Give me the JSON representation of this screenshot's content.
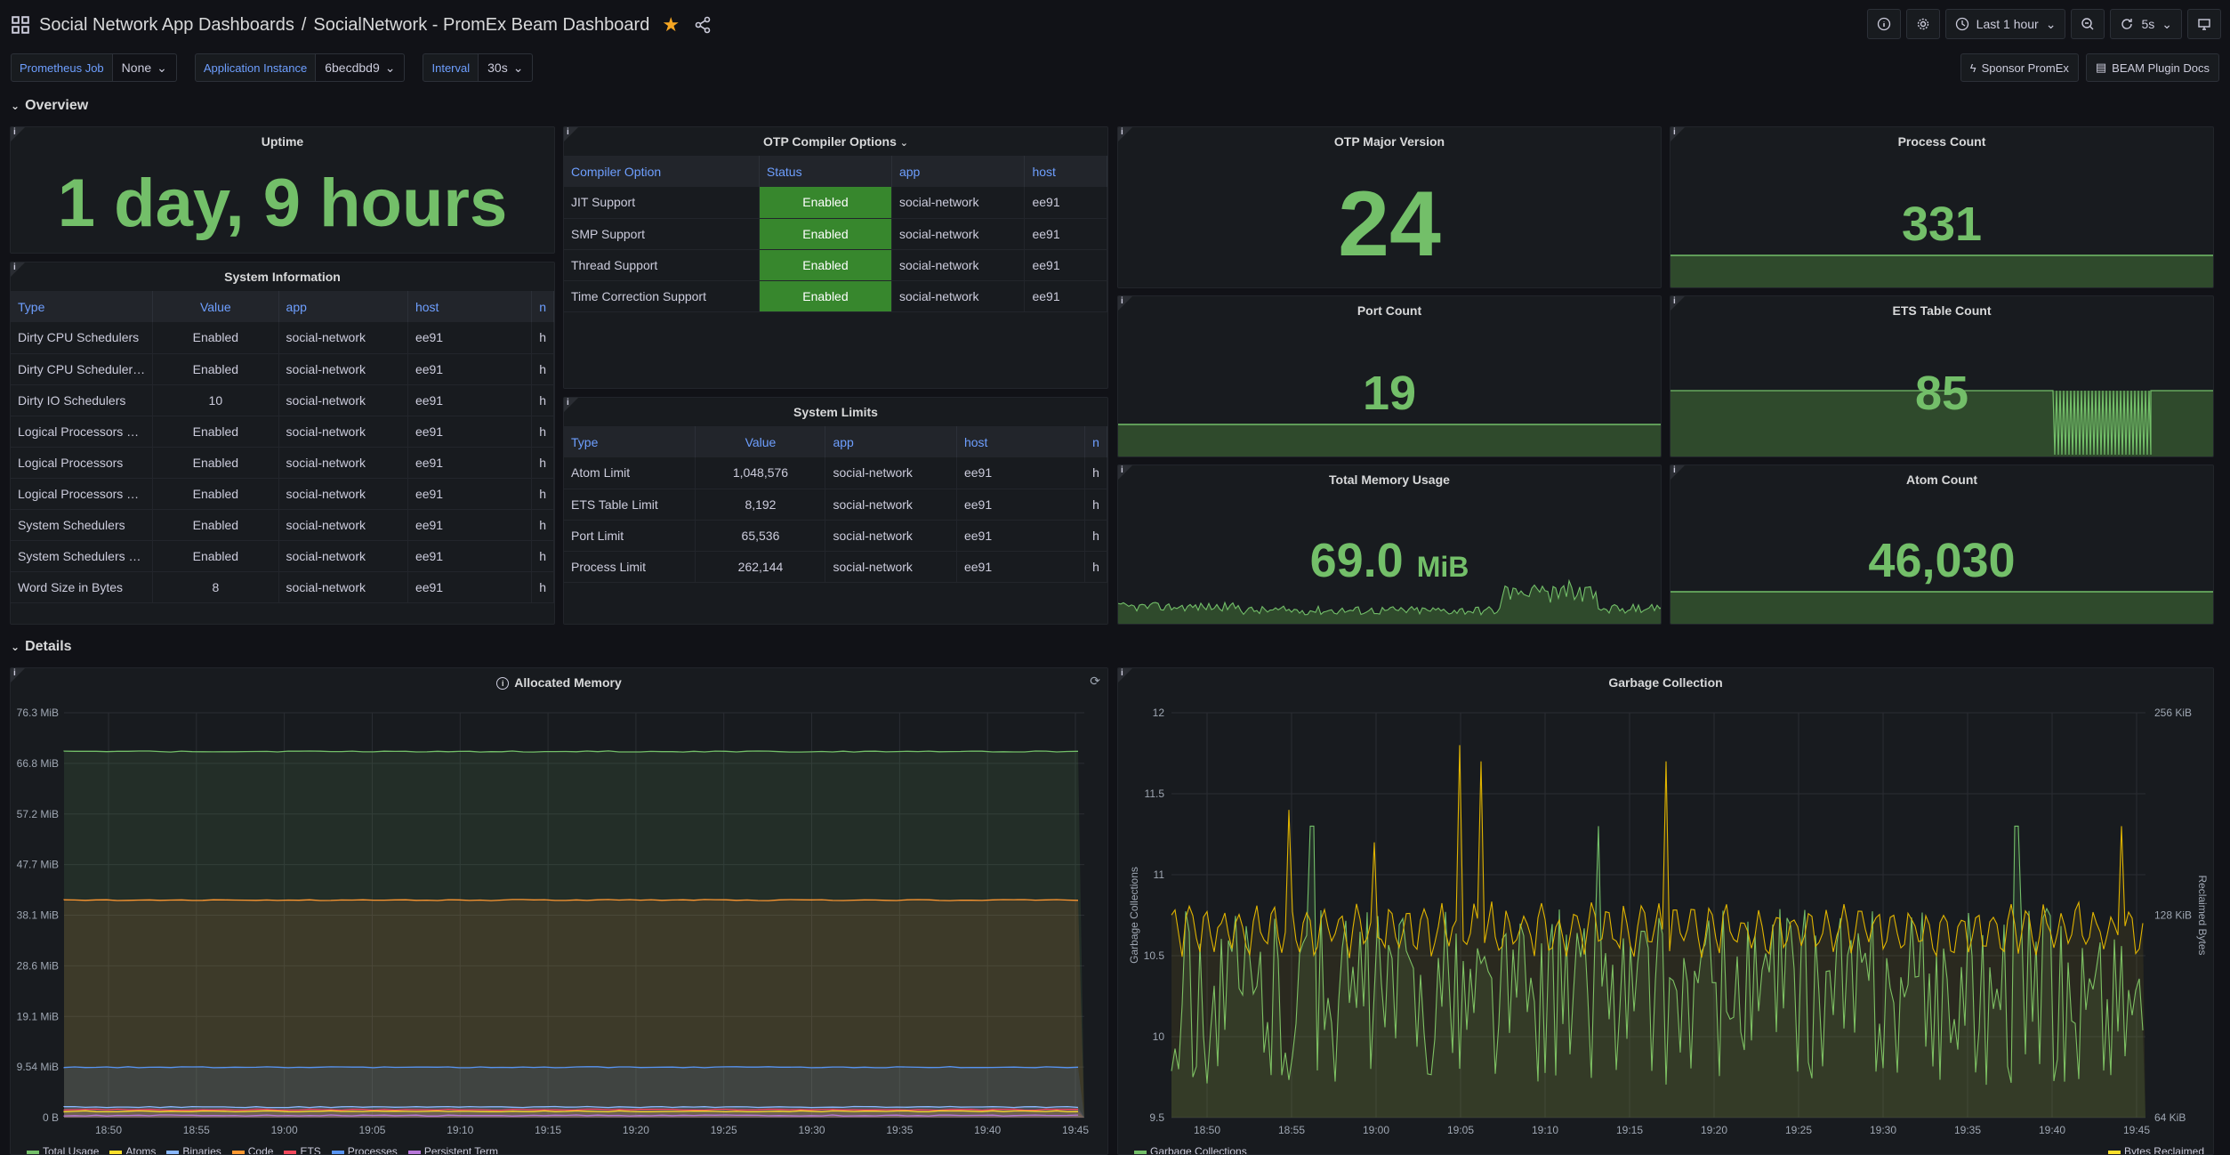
{
  "header": {
    "folder": "Social Network App Dashboards",
    "separator": "/",
    "title": "SocialNetwork - PromEx Beam Dashboard",
    "time_range": "Last 1 hour",
    "refresh_interval": "5s"
  },
  "variables": [
    {
      "label": "Prometheus Job",
      "value": "None"
    },
    {
      "label": "Application Instance",
      "value": "6becdbd9"
    },
    {
      "label": "Interval",
      "value": "30s"
    }
  ],
  "links": {
    "sponsor": "Sponsor PromEx",
    "docs": "BEAM Plugin Docs"
  },
  "rows": {
    "overview": "Overview",
    "details": "Details"
  },
  "uptime": {
    "title": "Uptime",
    "value": "1 day, 9 hours"
  },
  "system_info": {
    "title": "System Information",
    "columns": [
      "Type",
      "Value",
      "app",
      "host",
      "n"
    ],
    "rows": [
      [
        "Dirty CPU Schedulers",
        "Enabled",
        "social-network",
        "ee91",
        "h"
      ],
      [
        "Dirty CPU Scheduler…",
        "Enabled",
        "social-network",
        "ee91",
        "h"
      ],
      [
        "Dirty IO Schedulers",
        "10",
        "social-network",
        "ee91",
        "h"
      ],
      [
        "Logical Processors …",
        "Enabled",
        "social-network",
        "ee91",
        "h"
      ],
      [
        "Logical Processors",
        "Enabled",
        "social-network",
        "ee91",
        "h"
      ],
      [
        "Logical Processors …",
        "Enabled",
        "social-network",
        "ee91",
        "h"
      ],
      [
        "System Schedulers",
        "Enabled",
        "social-network",
        "ee91",
        "h"
      ],
      [
        "System Schedulers …",
        "Enabled",
        "social-network",
        "ee91",
        "h"
      ],
      [
        "Word Size in Bytes",
        "8",
        "social-network",
        "ee91",
        "h"
      ]
    ]
  },
  "otp_compiler": {
    "title": "OTP Compiler Options",
    "columns": [
      "Compiler Option",
      "Status",
      "app",
      "host"
    ],
    "rows": [
      [
        "JIT Support",
        "Enabled",
        "social-network",
        "ee91"
      ],
      [
        "SMP Support",
        "Enabled",
        "social-network",
        "ee91"
      ],
      [
        "Thread Support",
        "Enabled",
        "social-network",
        "ee91"
      ],
      [
        "Time Correction Support",
        "Enabled",
        "social-network",
        "ee91"
      ]
    ]
  },
  "system_limits": {
    "title": "System Limits",
    "columns": [
      "Type",
      "Value",
      "app",
      "host",
      "n"
    ],
    "rows": [
      [
        "Atom Limit",
        "1,048,576",
        "social-network",
        "ee91",
        "h"
      ],
      [
        "ETS Table Limit",
        "8,192",
        "social-network",
        "ee91",
        "h"
      ],
      [
        "Port Limit",
        "65,536",
        "social-network",
        "ee91",
        "h"
      ],
      [
        "Process Limit",
        "262,144",
        "social-network",
        "ee91",
        "h"
      ]
    ]
  },
  "stats": {
    "otp_major": {
      "title": "OTP Major Version",
      "value": "24"
    },
    "process_count": {
      "title": "Process Count",
      "value": "331"
    },
    "port_count": {
      "title": "Port Count",
      "value": "19"
    },
    "ets_count": {
      "title": "ETS Table Count",
      "value": "85"
    },
    "memory": {
      "title": "Total Memory Usage",
      "value": "69.0",
      "unit": "MiB"
    },
    "atom_count": {
      "title": "Atom Count",
      "value": "46,030"
    }
  },
  "colors": {
    "green": "#73bf69",
    "yellow": "#fade2a",
    "orange": "#ff9830",
    "blue": "#5794f2",
    "background": "#111217",
    "panel": "#181b1f"
  },
  "chart_data": [
    {
      "type": "area",
      "title": "Allocated Memory",
      "x": [
        "18:50",
        "18:55",
        "19:00",
        "19:05",
        "19:10",
        "19:15",
        "19:20",
        "19:25",
        "19:30",
        "19:35",
        "19:40",
        "19:45"
      ],
      "yticks": [
        "76.3 MiB",
        "66.8 MiB",
        "57.2 MiB",
        "47.7 MiB",
        "38.1 MiB",
        "28.6 MiB",
        "19.1 MiB",
        "9.54 MiB",
        "0 B"
      ],
      "ylim": [
        0,
        76.3
      ],
      "series": [
        {
          "name": "Total Usage",
          "color": "#73bf69",
          "value": 69.0
        },
        {
          "name": "Atoms",
          "color": "#fade2a",
          "value": 1.2
        },
        {
          "name": "Binaries",
          "color": "#8ab8ff",
          "value": 2.0
        },
        {
          "name": "Code",
          "color": "#ff9830",
          "value": 41.0
        },
        {
          "name": "ETS",
          "color": "#f2495c",
          "value": 1.5
        },
        {
          "name": "Processes",
          "color": "#5794f2",
          "value": 9.5
        },
        {
          "name": "Persistent Term",
          "color": "#b877d9",
          "value": 0.4
        }
      ]
    },
    {
      "type": "line",
      "title": "Garbage Collection",
      "x": [
        "18:50",
        "18:55",
        "19:00",
        "19:05",
        "19:10",
        "19:15",
        "19:20",
        "19:25",
        "19:30",
        "19:35",
        "19:40",
        "19:45"
      ],
      "yticks_left": [
        "12",
        "11.5",
        "11",
        "10.5",
        "10",
        "9.5"
      ],
      "yticks_right": [
        "256 KiB",
        "128 KiB",
        "64 KiB"
      ],
      "ylabel_left": "Garbage Collections",
      "ylabel_right": "Reclaimed Bytes",
      "ylim": [
        9.5,
        12
      ],
      "series": [
        {
          "name": "Garbage Collections",
          "color": "#73bf69"
        },
        {
          "name": "Bytes Reclaimed",
          "color": "#fade2a"
        }
      ]
    }
  ]
}
